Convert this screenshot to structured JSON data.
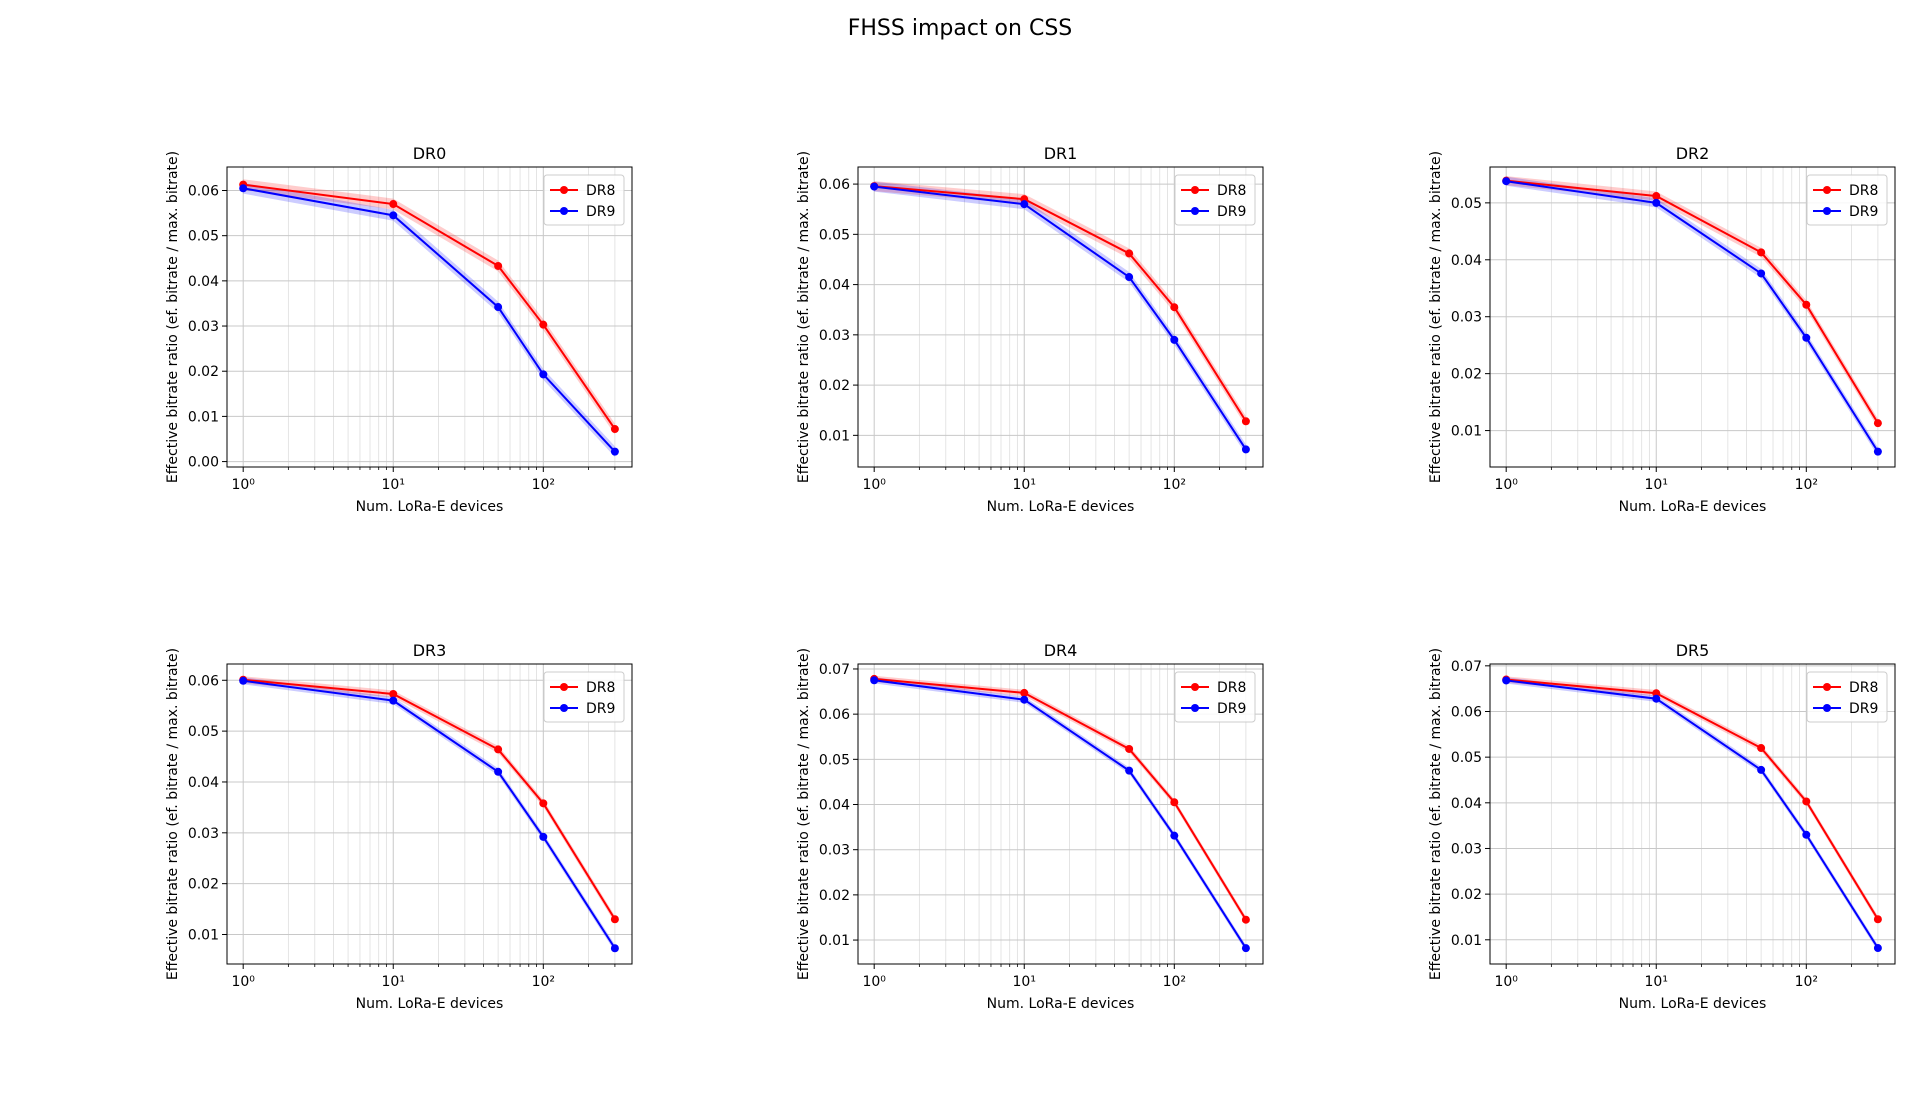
{
  "figure_title": "FHSS impact on CSS",
  "colors": {
    "DR8": "#ff0000",
    "DR9": "#0000ff"
  },
  "chart_data": [
    {
      "type": "line",
      "title": "DR0",
      "xlabel": "Num. LoRa-E devices",
      "ylabel": "Effective bitrate ratio (ef. bitrate / max. bitrate)",
      "xscale": "log",
      "xlim": [
        0.78,
        390
      ],
      "ylim": [
        -0.0012,
        0.0652
      ],
      "yticks": [
        0.0,
        0.01,
        0.02,
        0.03,
        0.04,
        0.05,
        0.06
      ],
      "yticklabels": [
        "0.00",
        "0.01",
        "0.02",
        "0.03",
        "0.04",
        "0.05",
        "0.06"
      ],
      "xticks": [
        1,
        10,
        100
      ],
      "xticklabels": [
        "10⁰",
        "10¹",
        "10²"
      ],
      "grid": true,
      "legend": "upper right",
      "x": [
        1,
        10,
        50,
        100,
        300
      ],
      "series": [
        {
          "name": "DR8",
          "color": "#ff0000",
          "values": [
            0.0613,
            0.057,
            0.0433,
            0.0303,
            0.0072
          ],
          "band": 0.0012
        },
        {
          "name": "DR9",
          "color": "#0000ff",
          "values": [
            0.0605,
            0.0545,
            0.0342,
            0.0193,
            0.0022
          ],
          "band": 0.0012
        }
      ]
    },
    {
      "type": "line",
      "title": "DR1",
      "xlabel": "Num. LoRa-E devices",
      "ylabel": "Effective bitrate ratio (ef. bitrate / max. bitrate)",
      "xscale": "log",
      "xlim": [
        0.78,
        390
      ],
      "ylim": [
        0.0037,
        0.0634
      ],
      "yticks": [
        0.01,
        0.02,
        0.03,
        0.04,
        0.05,
        0.06
      ],
      "yticklabels": [
        "0.01",
        "0.02",
        "0.03",
        "0.04",
        "0.05",
        "0.06"
      ],
      "xticks": [
        1,
        10,
        100
      ],
      "xticklabels": [
        "10⁰",
        "10¹",
        "10²"
      ],
      "grid": true,
      "legend": "upper right",
      "x": [
        1,
        10,
        50,
        100,
        300
      ],
      "series": [
        {
          "name": "DR8",
          "color": "#ff0000",
          "values": [
            0.0596,
            0.057,
            0.0462,
            0.0355,
            0.0128
          ],
          "band": 0.001
        },
        {
          "name": "DR9",
          "color": "#0000ff",
          "values": [
            0.0595,
            0.056,
            0.0415,
            0.029,
            0.0072
          ],
          "band": 0.001
        }
      ]
    },
    {
      "type": "line",
      "title": "DR2",
      "xlabel": "Num. LoRa-E devices",
      "ylabel": "Effective bitrate ratio (ef. bitrate / max. bitrate)",
      "xscale": "log",
      "xlim": [
        0.78,
        390
      ],
      "ylim": [
        0.0036,
        0.0563
      ],
      "yticks": [
        0.01,
        0.02,
        0.03,
        0.04,
        0.05
      ],
      "yticklabels": [
        "0.01",
        "0.02",
        "0.03",
        "0.04",
        "0.05"
      ],
      "xticks": [
        1,
        10,
        100
      ],
      "xticklabels": [
        "10⁰",
        "10¹",
        "10²"
      ],
      "grid": true,
      "legend": "upper right",
      "x": [
        1,
        10,
        50,
        100,
        300
      ],
      "series": [
        {
          "name": "DR8",
          "color": "#ff0000",
          "values": [
            0.0539,
            0.0512,
            0.0413,
            0.0321,
            0.0113
          ],
          "band": 0.0008
        },
        {
          "name": "DR9",
          "color": "#0000ff",
          "values": [
            0.0538,
            0.05,
            0.0376,
            0.0263,
            0.0063
          ],
          "band": 0.0008
        }
      ]
    },
    {
      "type": "line",
      "title": "DR3",
      "xlabel": "Num. LoRa-E devices",
      "ylabel": "Effective bitrate ratio (ef. bitrate / max. bitrate)",
      "xscale": "log",
      "xlim": [
        0.78,
        390
      ],
      "ylim": [
        0.0042,
        0.0632
      ],
      "yticks": [
        0.01,
        0.02,
        0.03,
        0.04,
        0.05,
        0.06
      ],
      "yticklabels": [
        "0.01",
        "0.02",
        "0.03",
        "0.04",
        "0.05",
        "0.06"
      ],
      "xticks": [
        1,
        10,
        100
      ],
      "xticklabels": [
        "10⁰",
        "10¹",
        "10²"
      ],
      "grid": true,
      "legend": "upper right",
      "x": [
        1,
        10,
        50,
        100,
        300
      ],
      "series": [
        {
          "name": "DR8",
          "color": "#ff0000",
          "values": [
            0.0601,
            0.0573,
            0.0464,
            0.0358,
            0.013
          ],
          "band": 0.0007
        },
        {
          "name": "DR9",
          "color": "#0000ff",
          "values": [
            0.0599,
            0.056,
            0.042,
            0.0292,
            0.0073
          ],
          "band": 0.0007
        }
      ]
    },
    {
      "type": "line",
      "title": "DR4",
      "xlabel": "Num. LoRa-E devices",
      "ylabel": "Effective bitrate ratio (ef. bitrate / max. bitrate)",
      "xscale": "log",
      "xlim": [
        0.78,
        390
      ],
      "ylim": [
        0.0047,
        0.0711
      ],
      "yticks": [
        0.01,
        0.02,
        0.03,
        0.04,
        0.05,
        0.06,
        0.07
      ],
      "yticklabels": [
        "0.01",
        "0.02",
        "0.03",
        "0.04",
        "0.05",
        "0.06",
        "0.07"
      ],
      "xticks": [
        1,
        10,
        100
      ],
      "xticklabels": [
        "10⁰",
        "10¹",
        "10²"
      ],
      "grid": true,
      "legend": "upper right",
      "x": [
        1,
        10,
        50,
        100,
        300
      ],
      "series": [
        {
          "name": "DR8",
          "color": "#ff0000",
          "values": [
            0.0678,
            0.0647,
            0.0523,
            0.0405,
            0.0145
          ],
          "band": 0.0007
        },
        {
          "name": "DR9",
          "color": "#0000ff",
          "values": [
            0.0675,
            0.0632,
            0.0475,
            0.0331,
            0.0082
          ],
          "band": 0.0007
        }
      ]
    },
    {
      "type": "line",
      "title": "DR5",
      "xlabel": "Num. LoRa-E devices",
      "ylabel": "Effective bitrate ratio (ef. bitrate / max. bitrate)",
      "xscale": "log",
      "xlim": [
        0.78,
        390
      ],
      "ylim": [
        0.0047,
        0.0704
      ],
      "yticks": [
        0.01,
        0.02,
        0.03,
        0.04,
        0.05,
        0.06,
        0.07
      ],
      "yticklabels": [
        "0.01",
        "0.02",
        "0.03",
        "0.04",
        "0.05",
        "0.06",
        "0.07"
      ],
      "xticks": [
        1,
        10,
        100
      ],
      "xticklabels": [
        "10⁰",
        "10¹",
        "10²"
      ],
      "grid": true,
      "legend": "upper right",
      "x": [
        1,
        10,
        50,
        100,
        300
      ],
      "series": [
        {
          "name": "DR8",
          "color": "#ff0000",
          "values": [
            0.067,
            0.064,
            0.052,
            0.0403,
            0.0145
          ],
          "band": 0.0007
        },
        {
          "name": "DR9",
          "color": "#0000ff",
          "values": [
            0.0668,
            0.0628,
            0.0472,
            0.033,
            0.0082
          ],
          "band": 0.0007
        }
      ]
    }
  ]
}
